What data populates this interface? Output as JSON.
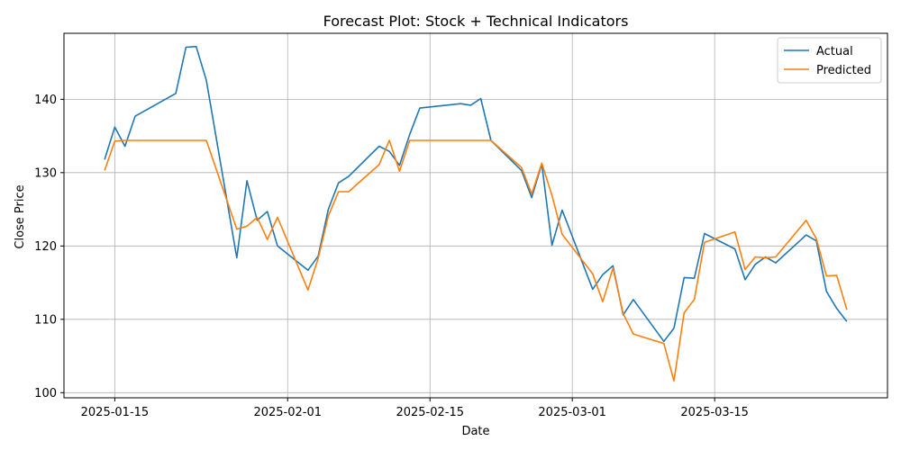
{
  "chart_data": {
    "type": "line",
    "title": "Forecast Plot: Stock + Technical Indicators",
    "xlabel": "Date",
    "ylabel": "Close Price",
    "x_ticks": [
      "2025-01-15",
      "2025-02-01",
      "2025-02-15",
      "2025-03-01",
      "2025-03-15"
    ],
    "y_ticks": [
      100,
      110,
      120,
      130,
      140
    ],
    "ylim": [
      99.3,
      149.0
    ],
    "xlim": [
      "2025-01-10",
      "2025-04-01"
    ],
    "grid": true,
    "legend_position": "top-right",
    "series": [
      {
        "name": "Actual",
        "color": "#1f77b4",
        "points": [
          [
            "2025-01-14",
            131.8
          ],
          [
            "2025-01-15",
            136.2
          ],
          [
            "2025-01-16",
            133.6
          ],
          [
            "2025-01-17",
            137.7
          ],
          [
            "2025-01-21",
            140.8
          ],
          [
            "2025-01-22",
            147.1
          ],
          [
            "2025-01-23",
            147.2
          ],
          [
            "2025-01-24",
            142.6
          ],
          [
            "2025-01-27",
            118.4
          ],
          [
            "2025-01-28",
            128.9
          ],
          [
            "2025-01-29",
            123.5
          ],
          [
            "2025-01-30",
            124.7
          ],
          [
            "2025-01-31",
            120.0
          ],
          [
            "2025-02-03",
            116.7
          ],
          [
            "2025-02-04",
            118.6
          ],
          [
            "2025-02-05",
            125.0
          ],
          [
            "2025-02-06",
            128.6
          ],
          [
            "2025-02-07",
            129.5
          ],
          [
            "2025-02-10",
            133.6
          ],
          [
            "2025-02-11",
            132.9
          ],
          [
            "2025-02-12",
            131.0
          ],
          [
            "2025-02-13",
            135.2
          ],
          [
            "2025-02-14",
            138.8
          ],
          [
            "2025-02-18",
            139.4
          ],
          [
            "2025-02-19",
            139.2
          ],
          [
            "2025-02-20",
            140.1
          ],
          [
            "2025-02-21",
            134.4
          ],
          [
            "2025-02-24",
            130.3
          ],
          [
            "2025-02-25",
            126.6
          ],
          [
            "2025-02-26",
            131.2
          ],
          [
            "2025-02-27",
            120.1
          ],
          [
            "2025-02-28",
            124.9
          ],
          [
            "2025-03-03",
            114.1
          ],
          [
            "2025-03-04",
            116.1
          ],
          [
            "2025-03-05",
            117.3
          ],
          [
            "2025-03-06",
            110.6
          ],
          [
            "2025-03-07",
            112.7
          ],
          [
            "2025-03-10",
            107.0
          ],
          [
            "2025-03-11",
            108.8
          ],
          [
            "2025-03-12",
            115.7
          ],
          [
            "2025-03-13",
            115.6
          ],
          [
            "2025-03-14",
            121.7
          ],
          [
            "2025-03-17",
            119.6
          ],
          [
            "2025-03-18",
            115.4
          ],
          [
            "2025-03-19",
            117.5
          ],
          [
            "2025-03-20",
            118.5
          ],
          [
            "2025-03-21",
            117.7
          ],
          [
            "2025-03-24",
            121.5
          ],
          [
            "2025-03-25",
            120.7
          ],
          [
            "2025-03-26",
            113.8
          ],
          [
            "2025-03-27",
            111.5
          ],
          [
            "2025-03-28",
            109.7
          ]
        ]
      },
      {
        "name": "Predicted",
        "color": "#ff7f0e",
        "points": [
          [
            "2025-01-14",
            130.3
          ],
          [
            "2025-01-15",
            134.3
          ],
          [
            "2025-01-16",
            134.4
          ],
          [
            "2025-01-17",
            134.4
          ],
          [
            "2025-01-21",
            134.4
          ],
          [
            "2025-01-22",
            134.4
          ],
          [
            "2025-01-23",
            134.4
          ],
          [
            "2025-01-24",
            134.4
          ],
          [
            "2025-01-27",
            122.3
          ],
          [
            "2025-01-28",
            122.7
          ],
          [
            "2025-01-29",
            123.9
          ],
          [
            "2025-01-30",
            120.9
          ],
          [
            "2025-01-31",
            123.9
          ],
          [
            "2025-02-03",
            114.0
          ],
          [
            "2025-02-04",
            118.3
          ],
          [
            "2025-02-05",
            124.1
          ],
          [
            "2025-02-06",
            127.4
          ],
          [
            "2025-02-07",
            127.4
          ],
          [
            "2025-02-10",
            131.1
          ],
          [
            "2025-02-11",
            134.4
          ],
          [
            "2025-02-12",
            130.2
          ],
          [
            "2025-02-13",
            134.4
          ],
          [
            "2025-02-14",
            134.4
          ],
          [
            "2025-02-18",
            134.4
          ],
          [
            "2025-02-19",
            134.4
          ],
          [
            "2025-02-20",
            134.4
          ],
          [
            "2025-02-21",
            134.4
          ],
          [
            "2025-02-24",
            130.7
          ],
          [
            "2025-02-25",
            127.1
          ],
          [
            "2025-02-26",
            131.3
          ],
          [
            "2025-02-27",
            126.9
          ],
          [
            "2025-02-28",
            121.6
          ],
          [
            "2025-03-03",
            116.2
          ],
          [
            "2025-03-04",
            112.4
          ],
          [
            "2025-03-05",
            117.0
          ],
          [
            "2025-03-06",
            110.8
          ],
          [
            "2025-03-07",
            108.0
          ],
          [
            "2025-03-10",
            106.7
          ],
          [
            "2025-03-11",
            101.6
          ],
          [
            "2025-03-12",
            110.9
          ],
          [
            "2025-03-13",
            112.7
          ],
          [
            "2025-03-14",
            120.5
          ],
          [
            "2025-03-17",
            121.9
          ],
          [
            "2025-03-18",
            116.8
          ],
          [
            "2025-03-19",
            118.5
          ],
          [
            "2025-03-20",
            118.4
          ],
          [
            "2025-03-21",
            118.5
          ],
          [
            "2025-03-24",
            123.5
          ],
          [
            "2025-03-25",
            121.0
          ],
          [
            "2025-03-26",
            115.9
          ],
          [
            "2025-03-27",
            116.0
          ],
          [
            "2025-03-28",
            111.3
          ]
        ]
      }
    ]
  }
}
